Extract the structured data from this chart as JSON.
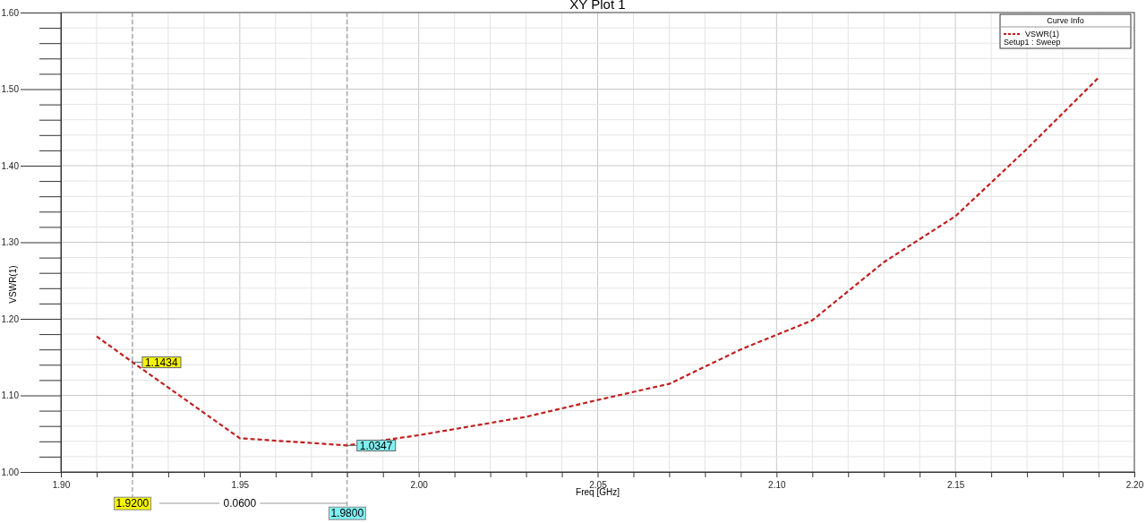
{
  "chart_data": {
    "type": "line",
    "title": "XY Plot 1",
    "xlabel": "Freq [GHz]",
    "ylabel": "VSWR(1)",
    "legend_title": "Curve Info",
    "legend": "top right",
    "grid": true,
    "line_style": "dashed",
    "marker": "none",
    "xlim": [
      1.9,
      2.2
    ],
    "ylim": [
      1.0,
      1.6
    ],
    "xticks": [
      {
        "value": 1.9,
        "label": "1.90"
      },
      {
        "value": 1.91,
        "label": null
      },
      {
        "value": 1.92,
        "label": null
      },
      {
        "value": 1.93,
        "label": null
      },
      {
        "value": 1.94,
        "label": null
      },
      1.95,
      {
        "value": 1.96,
        "label": null
      },
      {
        "value": 1.97,
        "label": null
      },
      {
        "value": 1.98,
        "label": null
      },
      {
        "value": 1.99,
        "label": null
      },
      {
        "value": 2.0,
        "label": "2.00"
      },
      {
        "value": 2.01,
        "label": null
      },
      {
        "value": 2.02,
        "label": null
      },
      {
        "value": 2.03,
        "label": null
      },
      {
        "value": 2.04,
        "label": null
      },
      2.05,
      {
        "value": 2.06,
        "label": null
      },
      {
        "value": 2.07,
        "label": null
      },
      {
        "value": 2.08,
        "label": null
      },
      {
        "value": 2.09,
        "label": null
      },
      {
        "value": 2.1,
        "label": "2.10"
      },
      {
        "value": 2.11,
        "label": null
      },
      {
        "value": 2.12,
        "label": null
      },
      {
        "value": 2.13,
        "label": null
      },
      {
        "value": 2.14,
        "label": null
      },
      2.15,
      {
        "value": 2.16,
        "label": null
      },
      {
        "value": 2.17,
        "label": null
      },
      {
        "value": 2.18,
        "label": null
      },
      {
        "value": 2.19,
        "label": null
      },
      {
        "value": 2.2,
        "label": "2.20"
      }
    ],
    "yticks": [
      {
        "value": 1.0,
        "label": "1.00"
      },
      {
        "value": 1.02,
        "label": null
      },
      {
        "value": 1.04,
        "label": null
      },
      {
        "value": 1.06,
        "label": null
      },
      {
        "value": 1.08,
        "label": null
      },
      {
        "value": 1.1,
        "label": "1.10"
      },
      {
        "value": 1.12,
        "label": null
      },
      {
        "value": 1.14,
        "label": null
      },
      {
        "value": 1.16,
        "label": null
      },
      {
        "value": 1.18,
        "label": null
      },
      {
        "value": 1.2,
        "label": "1.20"
      },
      {
        "value": 1.22,
        "label": null
      },
      {
        "value": 1.24,
        "label": null
      },
      {
        "value": 1.26,
        "label": null
      },
      {
        "value": 1.28,
        "label": null
      },
      {
        "value": 1.3,
        "label": "1.30"
      },
      {
        "value": 1.32,
        "label": null
      },
      {
        "value": 1.34,
        "label": null
      },
      {
        "value": 1.36,
        "label": null
      },
      {
        "value": 1.38,
        "label": null
      },
      {
        "value": 1.4,
        "label": "1.40"
      },
      {
        "value": 1.42,
        "label": null
      },
      {
        "value": 1.44,
        "label": null
      },
      {
        "value": 1.46,
        "label": null
      },
      {
        "value": 1.48,
        "label": null
      },
      {
        "value": 1.5,
        "label": "1.50"
      },
      {
        "value": 1.52,
        "label": null
      },
      {
        "value": 1.54,
        "label": null
      },
      {
        "value": 1.56,
        "label": null
      },
      {
        "value": 1.58,
        "label": null
      },
      {
        "value": 1.6,
        "label": "1.60"
      }
    ],
    "series": [
      {
        "name": "VSWR(1)",
        "color": "#c0201f",
        "x": [
          1.91,
          1.92,
          1.95,
          1.98,
          2.0,
          2.03,
          2.05,
          2.07,
          2.09,
          2.1,
          2.11,
          2.13,
          2.15,
          2.17,
          2.19
        ],
        "values": [
          1.177,
          1.1434,
          1.044,
          1.0347,
          1.048,
          1.072,
          1.094,
          1.115,
          1.16,
          1.179,
          1.198,
          1.274,
          1.334,
          1.422,
          1.515
        ]
      }
    ],
    "ref_lines": [
      {
        "axis": "x",
        "value": 1.92,
        "label": "1.9200",
        "line_style": "dashed"
      },
      {
        "axis": "x",
        "value": 1.98,
        "label": "1.9800",
        "line_style": "dashed"
      }
    ],
    "annotations": [
      {
        "text": "1.1434",
        "x": 1.92,
        "y": 1.1434
      },
      {
        "text": "1.0347",
        "x": 1.98,
        "y": 1.0347
      },
      "0.0600",
      "Setup1 : Sweep"
    ]
  }
}
